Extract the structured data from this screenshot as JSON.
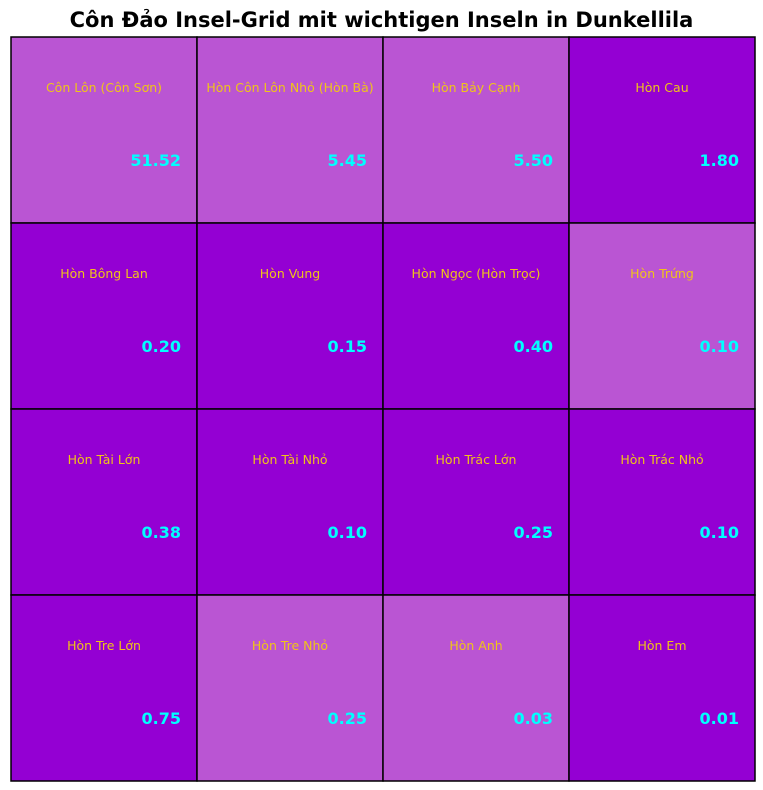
{
  "chart_data": {
    "type": "heatmap",
    "title": "Côn Đảo Insel-Grid mit wichtigen Inseln in Dunkellila",
    "rows": 4,
    "cols": 4,
    "colors": {
      "important": "#9400d3",
      "normal": "#ba55d3",
      "border": "#000000",
      "name_text": "#f0c419",
      "value_text": "#00ffff"
    },
    "cells": [
      {
        "name": "Côn Lôn (Côn Sơn)",
        "value": 51.52,
        "label": "51.52",
        "important": false
      },
      {
        "name": "Hòn Côn Lôn Nhỏ (Hòn Bà)",
        "value": 5.45,
        "label": "5.45",
        "important": false
      },
      {
        "name": "Hòn Bảy Cạnh",
        "value": 5.5,
        "label": "5.50",
        "important": false
      },
      {
        "name": "Hòn Cau",
        "value": 1.8,
        "label": "1.80",
        "important": true
      },
      {
        "name": "Hòn Bông Lan",
        "value": 0.2,
        "label": "0.20",
        "important": true
      },
      {
        "name": "Hòn Vung",
        "value": 0.15,
        "label": "0.15",
        "important": true
      },
      {
        "name": "Hòn Ngọc (Hòn Trọc)",
        "value": 0.4,
        "label": "0.40",
        "important": true
      },
      {
        "name": "Hòn Trứng",
        "value": 0.1,
        "label": "0.10",
        "important": false
      },
      {
        "name": "Hòn Tài Lớn",
        "value": 0.38,
        "label": "0.38",
        "important": true
      },
      {
        "name": "Hòn Tài Nhỏ",
        "value": 0.1,
        "label": "0.10",
        "important": true
      },
      {
        "name": "Hòn Trác Lớn",
        "value": 0.25,
        "label": "0.25",
        "important": true
      },
      {
        "name": "Hòn Trác Nhỏ",
        "value": 0.1,
        "label": "0.10",
        "important": true
      },
      {
        "name": "Hòn Tre Lớn",
        "value": 0.75,
        "label": "0.75",
        "important": true
      },
      {
        "name": "Hòn Tre Nhỏ",
        "value": 0.25,
        "label": "0.25",
        "important": false
      },
      {
        "name": "Hòn Anh",
        "value": 0.03,
        "label": "0.03",
        "important": false
      },
      {
        "name": "Hòn Em",
        "value": 0.01,
        "label": "0.01",
        "important": true
      }
    ]
  }
}
